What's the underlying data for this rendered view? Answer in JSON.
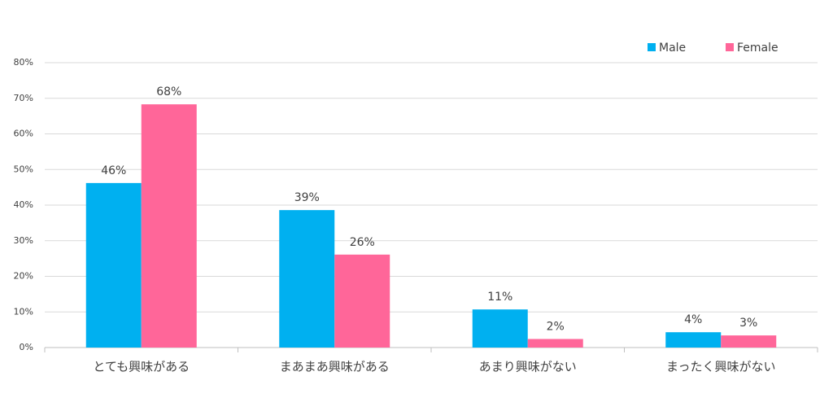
{
  "chart_data": {
    "type": "bar",
    "categories": [
      "とても興味がある",
      "まあまあ興味がある",
      "あまり興味がない",
      "まったく興味がない"
    ],
    "series": [
      {
        "name": "Male",
        "color": "#00b0f0",
        "values": [
          46.2,
          38.6,
          10.7,
          4.3
        ],
        "value_labels": [
          "46%",
          "39%",
          "11%",
          "4%"
        ]
      },
      {
        "name": "Female",
        "color": "#ff6699",
        "values": [
          68.3,
          26.1,
          2.4,
          3.4
        ],
        "value_labels": [
          "68%",
          "26%",
          "2%",
          "3%"
        ]
      }
    ],
    "ylim": [
      0,
      80
    ],
    "yticks": [
      {
        "value": 0,
        "label": "0%"
      },
      {
        "value": 10,
        "label": "10%"
      },
      {
        "value": 20,
        "label": "20%"
      },
      {
        "value": 30,
        "label": "30%"
      },
      {
        "value": 40,
        "label": "40%"
      },
      {
        "value": 50,
        "label": "50%"
      },
      {
        "value": 60,
        "label": "60%"
      },
      {
        "value": 70,
        "label": "70%"
      },
      {
        "value": 80,
        "label": "80%"
      }
    ],
    "grid": true,
    "legend": "top-right"
  }
}
